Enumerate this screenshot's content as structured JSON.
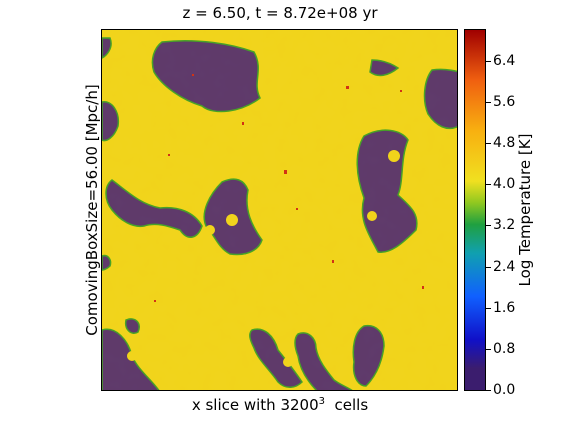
{
  "title": "z = 6.50, t = 8.72e+08 yr",
  "ylabel": "ComovingBoxSize=56.00 [Mpc/h]",
  "xlabel_prefix": "x slice with 3200",
  "xlabel_exp": "3",
  "xlabel_suffix": "  cells",
  "colorbar": {
    "label": "Log Temperature [K]",
    "min": 0.0,
    "max": 7.0,
    "ticks": [
      "0.0",
      "0.8",
      "1.6",
      "2.4",
      "3.2",
      "4.0",
      "4.8",
      "5.6",
      "6.4"
    ],
    "colormap": "jet"
  },
  "colors": {
    "ionized_gas": "#f2d51c",
    "neutral_gas": "#46207a",
    "front": "#2a9a2a",
    "hot_spots": "#d23214"
  }
}
